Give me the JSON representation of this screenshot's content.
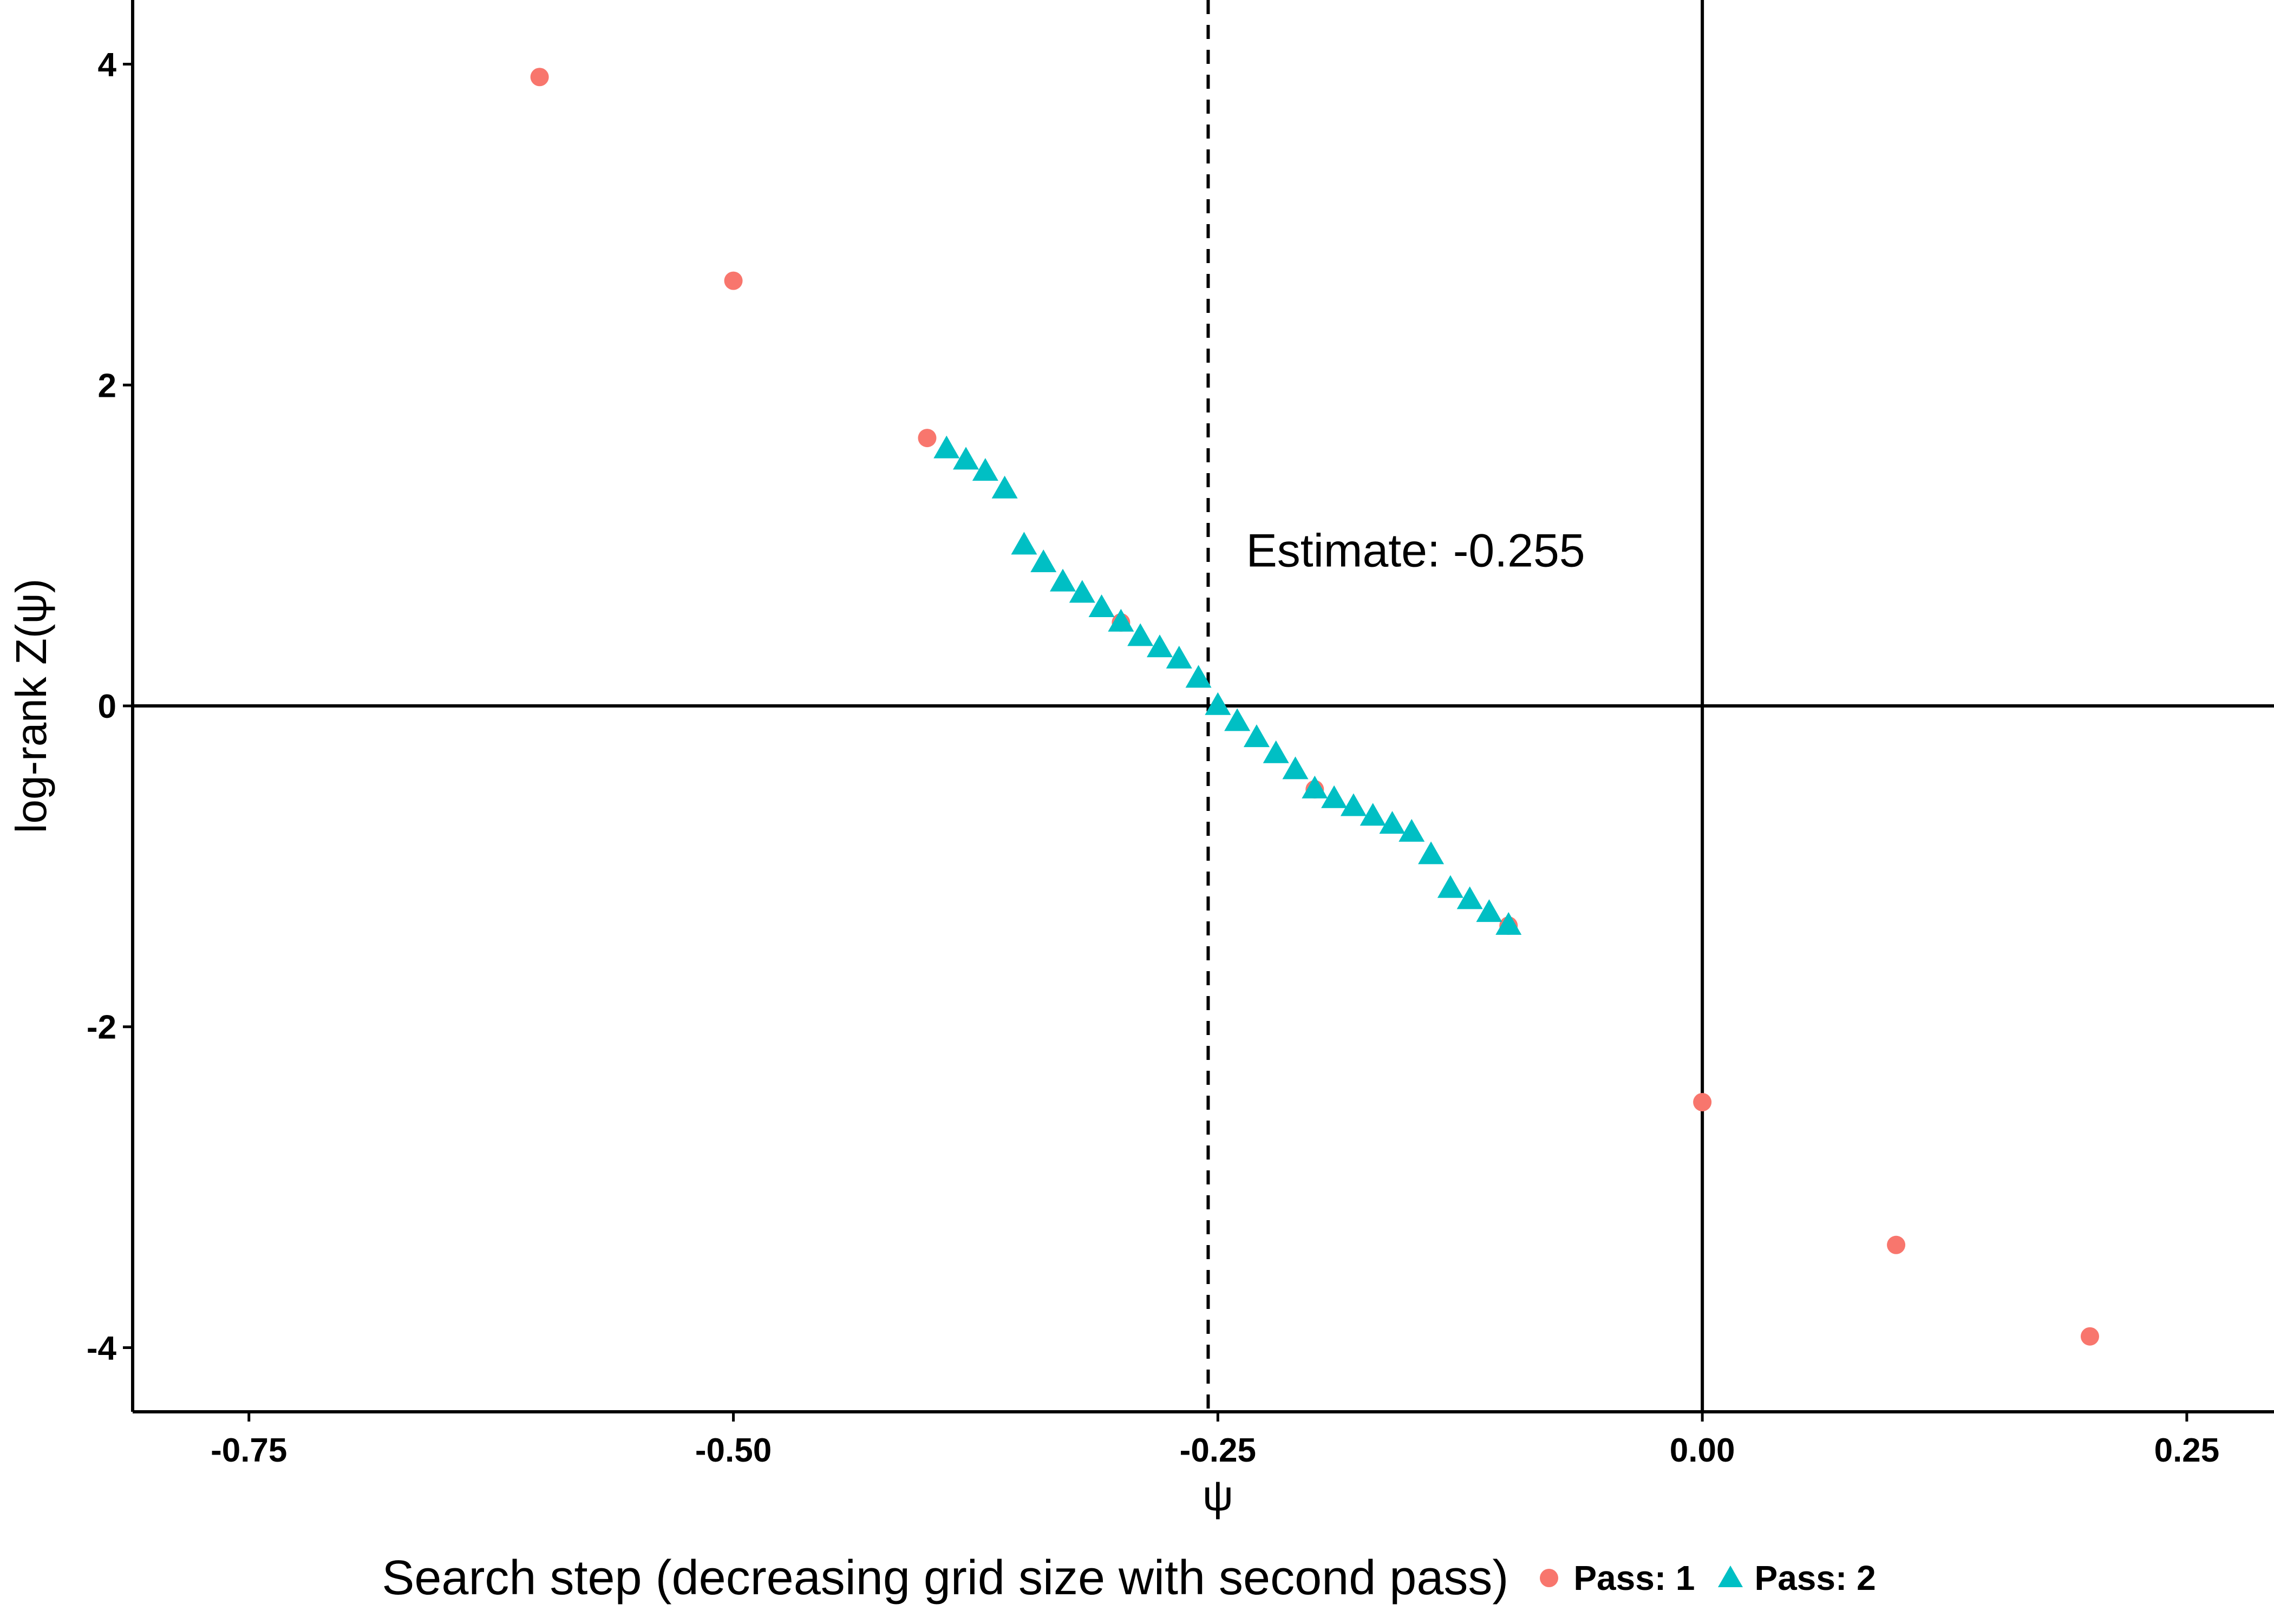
{
  "chart_data": {
    "type": "scatter",
    "xlabel": "ψ",
    "ylabel": "log-rank Z(ψ)",
    "xlim": [
      -0.81,
      0.295
    ],
    "ylim": [
      -4.4,
      4.4
    ],
    "x_ticks": [
      -0.75,
      -0.5,
      -0.25,
      0.0,
      0.25
    ],
    "x_tick_labels": [
      "-0.75",
      "-0.50",
      "-0.25",
      "0.00",
      "0.25"
    ],
    "y_ticks": [
      -4,
      -2,
      0,
      2,
      4
    ],
    "y_tick_labels": [
      "-4",
      "-2",
      "0",
      "2",
      "4"
    ],
    "reference_lines": {
      "horizontal_y": 0,
      "vertical_x": 0,
      "estimate_x": -0.255
    },
    "annotation": "Estimate: -0.255",
    "legend": {
      "title": "Search step (decreasing grid size with second pass)",
      "position": "bottom"
    },
    "series": [
      {
        "name": "Pass: 1",
        "marker": "circle",
        "color": "#F8766D",
        "x": [
          -0.6,
          -0.5,
          -0.4,
          -0.3,
          -0.2,
          -0.1,
          0.0,
          0.1,
          0.2
        ],
        "y": [
          3.92,
          2.65,
          1.67,
          0.52,
          -0.52,
          -1.37,
          -2.47,
          -3.36,
          -3.93
        ]
      },
      {
        "name": "Pass: 2",
        "marker": "triangle",
        "color": "#00BFC4",
        "x": [
          -0.39,
          -0.38,
          -0.37,
          -0.36,
          -0.35,
          -0.34,
          -0.33,
          -0.32,
          -0.31,
          -0.3,
          -0.29,
          -0.28,
          -0.27,
          -0.26,
          -0.25,
          -0.24,
          -0.23,
          -0.22,
          -0.21,
          -0.2,
          -0.19,
          -0.18,
          -0.17,
          -0.16,
          -0.15,
          -0.14,
          -0.13,
          -0.12,
          -0.11,
          -0.1
        ],
        "y": [
          1.6,
          1.53,
          1.46,
          1.35,
          1.0,
          0.89,
          0.77,
          0.7,
          0.61,
          0.52,
          0.43,
          0.36,
          0.29,
          0.17,
          0.0,
          -0.1,
          -0.2,
          -0.3,
          -0.4,
          -0.52,
          -0.58,
          -0.63,
          -0.69,
          -0.74,
          -0.79,
          -0.93,
          -1.14,
          -1.21,
          -1.29,
          -1.37
        ]
      }
    ]
  }
}
